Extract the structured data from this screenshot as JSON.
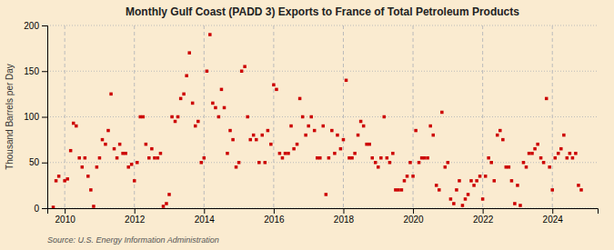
{
  "chart_data": {
    "type": "scatter",
    "title": "Monthly Gulf Coast (PADD 3) Exports to France of Total Petroleum Products",
    "y_label": "Thousand Barrels per Day",
    "annotations": [
      "Source: U.S. Energy Information Administration"
    ],
    "color": "#cc0000",
    "marker": "square",
    "grid": true,
    "xlim": [
      2009.5,
      2025.3
    ],
    "xticks": [
      2010,
      2012,
      2014,
      2016,
      2018,
      2020,
      2022,
      2024
    ],
    "ylim": [
      0,
      200
    ],
    "yticks": [
      0,
      50,
      100,
      150,
      200
    ],
    "x": [
      2009.67,
      2009.75,
      2009.83,
      2010.0,
      2010.08,
      2010.17,
      2010.25,
      2010.33,
      2010.42,
      2010.5,
      2010.58,
      2010.67,
      2010.75,
      2010.83,
      2010.92,
      2011.0,
      2011.08,
      2011.17,
      2011.25,
      2011.33,
      2011.42,
      2011.5,
      2011.58,
      2011.67,
      2011.75,
      2011.83,
      2011.92,
      2012.0,
      2012.08,
      2012.17,
      2012.25,
      2012.33,
      2012.42,
      2012.5,
      2012.58,
      2012.67,
      2012.75,
      2012.83,
      2012.92,
      2013.0,
      2013.08,
      2013.17,
      2013.25,
      2013.33,
      2013.42,
      2013.5,
      2013.58,
      2013.67,
      2013.75,
      2013.83,
      2013.92,
      2014.0,
      2014.08,
      2014.17,
      2014.25,
      2014.33,
      2014.42,
      2014.5,
      2014.58,
      2014.67,
      2014.75,
      2014.83,
      2014.92,
      2015.0,
      2015.08,
      2015.17,
      2015.25,
      2015.33,
      2015.42,
      2015.5,
      2015.58,
      2015.67,
      2015.75,
      2015.83,
      2015.92,
      2016.0,
      2016.08,
      2016.17,
      2016.25,
      2016.33,
      2016.42,
      2016.5,
      2016.58,
      2016.67,
      2016.75,
      2016.83,
      2016.92,
      2017.0,
      2017.08,
      2017.17,
      2017.25,
      2017.33,
      2017.42,
      2017.5,
      2017.58,
      2017.67,
      2017.75,
      2017.83,
      2017.92,
      2018.0,
      2018.08,
      2018.17,
      2018.25,
      2018.33,
      2018.42,
      2018.5,
      2018.58,
      2018.67,
      2018.75,
      2018.83,
      2018.92,
      2019.0,
      2019.08,
      2019.17,
      2019.25,
      2019.33,
      2019.42,
      2019.5,
      2019.58,
      2019.67,
      2019.75,
      2019.83,
      2019.92,
      2020.0,
      2020.08,
      2020.17,
      2020.25,
      2020.33,
      2020.42,
      2020.5,
      2020.58,
      2020.67,
      2020.75,
      2020.83,
      2020.92,
      2021.0,
      2021.08,
      2021.17,
      2021.25,
      2021.33,
      2021.42,
      2021.5,
      2021.58,
      2021.67,
      2021.75,
      2021.83,
      2021.92,
      2022.0,
      2022.08,
      2022.17,
      2022.25,
      2022.33,
      2022.42,
      2022.5,
      2022.58,
      2022.67,
      2022.75,
      2022.83,
      2022.92,
      2023.0,
      2023.08,
      2023.17,
      2023.25,
      2023.33,
      2023.42,
      2023.5,
      2023.58,
      2023.67,
      2023.75,
      2023.83,
      2023.92,
      2024.0,
      2024.08,
      2024.17,
      2024.25,
      2024.33,
      2024.42,
      2024.5,
      2024.58,
      2024.67,
      2024.75,
      2024.83
    ],
    "values": [
      1,
      30,
      35,
      30,
      32,
      63,
      93,
      90,
      55,
      45,
      55,
      35,
      20,
      2,
      45,
      55,
      75,
      70,
      85,
      125,
      65,
      55,
      70,
      60,
      60,
      45,
      48,
      30,
      50,
      100,
      100,
      70,
      55,
      65,
      55,
      55,
      60,
      2,
      5,
      15,
      100,
      95,
      100,
      120,
      125,
      145,
      170,
      115,
      90,
      95,
      50,
      55,
      150,
      190,
      115,
      110,
      100,
      130,
      110,
      60,
      85,
      75,
      45,
      50,
      150,
      155,
      100,
      75,
      80,
      75,
      50,
      80,
      50,
      85,
      70,
      135,
      130,
      60,
      55,
      60,
      60,
      90,
      65,
      70,
      120,
      100,
      80,
      90,
      100,
      85,
      55,
      55,
      90,
      15,
      55,
      85,
      60,
      80,
      65,
      75,
      140,
      55,
      55,
      60,
      80,
      95,
      90,
      70,
      70,
      55,
      50,
      45,
      55,
      100,
      55,
      50,
      60,
      20,
      20,
      20,
      30,
      35,
      50,
      35,
      85,
      50,
      55,
      55,
      55,
      90,
      80,
      25,
      20,
      105,
      45,
      50,
      10,
      5,
      20,
      30,
      3,
      10,
      15,
      30,
      25,
      30,
      35,
      10,
      35,
      55,
      50,
      30,
      80,
      85,
      75,
      45,
      45,
      30,
      5,
      25,
      3,
      50,
      45,
      60,
      60,
      65,
      70,
      55,
      50,
      120,
      45,
      20,
      55,
      60,
      65,
      80,
      55,
      60,
      55,
      60,
      25,
      20
    ]
  }
}
